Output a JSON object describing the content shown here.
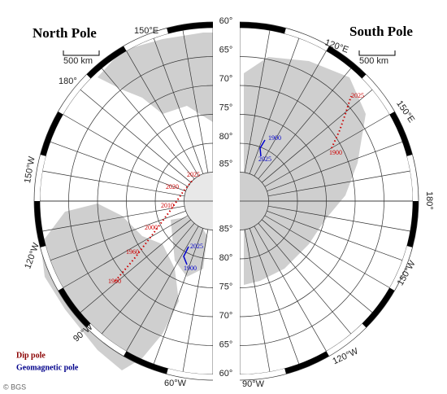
{
  "north": {
    "title": "North Pole",
    "scale": "500 km",
    "longitudes": [
      "150°E",
      "180°",
      "150°W",
      "120°W",
      "90°W",
      "60°W"
    ],
    "dip_years": [
      "2025",
      "2020",
      "2010",
      "2000",
      "1960",
      "1900"
    ],
    "geomagnetic_years": [
      "2025",
      "1900"
    ]
  },
  "south": {
    "title": "South Pole",
    "scale": "500 km",
    "longitudes": [
      "120°E",
      "150°E",
      "180°",
      "150°W",
      "120°W",
      "90°W"
    ],
    "dip_years": [
      "2025",
      "1900"
    ],
    "geomagnetic_years": [
      "1900",
      "2025"
    ]
  },
  "latitudes_upper": [
    "60°",
    "65°",
    "70°",
    "75°",
    "80°",
    "85°"
  ],
  "latitudes_lower": [
    "85°",
    "80°",
    "75°",
    "70°",
    "65°",
    "60°"
  ],
  "legend": {
    "dip": "Dip pole",
    "geomagnetic": "Geomagnetic pole"
  },
  "credit": "© BGS"
}
